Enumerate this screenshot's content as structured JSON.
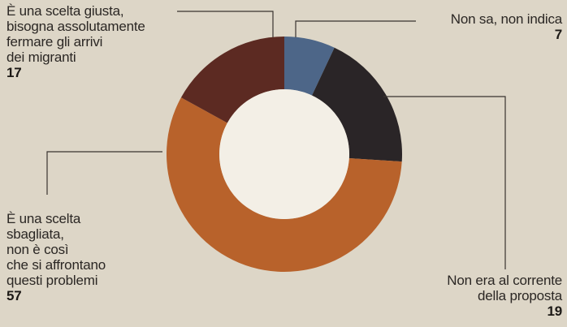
{
  "chart_data": {
    "type": "pie",
    "donut": true,
    "slices": [
      {
        "label_lines": [
          "Non sa, non indica"
        ],
        "value": 7,
        "color": "#4d6688"
      },
      {
        "label_lines": [],
        "value": 19,
        "color": "#2a2527"
      },
      {
        "label_lines": [],
        "value": 57,
        "color": "#b8622b"
      },
      {
        "label_lines": [
          "È una scelta giusta,",
          "bisogna assolutamente",
          "fermare gli arrivi",
          "dei migranti"
        ],
        "value": 17,
        "color": "#5c2a22"
      }
    ],
    "labels": {
      "non_sa": {
        "lines": [
          "Non sa, non indica"
        ],
        "value": "7"
      },
      "non_al_corrente": {
        "lines": [
          "Non era al corrente",
          "della proposta"
        ],
        "value": "19"
      },
      "sbagliata": {
        "lines": [
          "È una scelta",
          "sbagliata,",
          "non è così",
          "che si affrontano",
          "questi problemi"
        ],
        "value": "57"
      },
      "giusta": {
        "lines": [
          "È una scelta giusta,",
          "bisogna assolutamente",
          "fermare gli arrivi",
          "dei migranti"
        ],
        "value": "17"
      }
    }
  }
}
